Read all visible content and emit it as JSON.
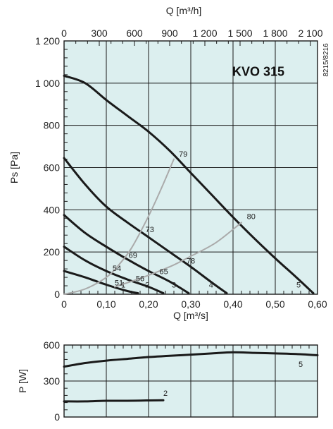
{
  "upper": {
    "model": "KVO 315",
    "side_code": "8215/8216",
    "top_axis_title": "Q [m³/h]",
    "top_ticks": [
      {
        "v": 0,
        "label": "0"
      },
      {
        "v": 300,
        "label": "300"
      },
      {
        "v": 600,
        "label": "600"
      },
      {
        "v": 900,
        "label": "900"
      },
      {
        "v": 1200,
        "label": "1 200"
      },
      {
        "v": 1500,
        "label": "1 500"
      },
      {
        "v": 1800,
        "label": "1 800"
      },
      {
        "v": 2100,
        "label": "2 100"
      }
    ],
    "x_axis_title": "Q [m³/s]",
    "x_ticks": [
      {
        "v": 0,
        "label": "0"
      },
      {
        "v": 0.1,
        "label": "0,10"
      },
      {
        "v": 0.2,
        "label": "0,20"
      },
      {
        "v": 0.3,
        "label": "0,30"
      },
      {
        "v": 0.4,
        "label": "0,40"
      },
      {
        "v": 0.5,
        "label": "0,50"
      },
      {
        "v": 0.6,
        "label": "0,60"
      }
    ],
    "y_axis_title": "Ps [Pa]",
    "y_ticks": [
      {
        "v": 0,
        "label": "0"
      },
      {
        "v": 200,
        "label": "200"
      },
      {
        "v": 400,
        "label": "400"
      },
      {
        "v": 600,
        "label": "600"
      },
      {
        "v": 800,
        "label": "800"
      },
      {
        "v": 1000,
        "label": "1 000"
      },
      {
        "v": 1200,
        "label": "1 200"
      }
    ]
  },
  "lower": {
    "y_axis_title": "P [W]",
    "y_ticks": [
      {
        "v": 0,
        "label": "0"
      },
      {
        "v": 300,
        "label": "300"
      },
      {
        "v": 600,
        "label": "600"
      }
    ]
  },
  "colors": {
    "plot_bg": "#dcefef",
    "grid": "#1a1a1a",
    "curve": "#1a1a1a",
    "efficiency": "#aaaaaa"
  },
  "chart_data": [
    {
      "type": "line",
      "title": "KVO 315",
      "xlabel": "Q [m³/s]",
      "ylabel": "Ps [Pa]",
      "secondary_xlabel": "Q [m³/h]",
      "xlim": [
        0,
        0.6
      ],
      "ylim": [
        0,
        1200
      ],
      "grid": true,
      "series": [
        {
          "name": "5",
          "label_at": [
            0.555,
            45
          ],
          "x": [
            0,
            0.05,
            0.1,
            0.15,
            0.2,
            0.25,
            0.3,
            0.35,
            0.4,
            0.45,
            0.5,
            0.55,
            0.59
          ],
          "y": [
            1035,
            1000,
            920,
            845,
            770,
            680,
            575,
            470,
            365,
            265,
            170,
            80,
            5
          ]
        },
        {
          "name": "4",
          "label_at": [
            0.348,
            45
          ],
          "x": [
            0,
            0.05,
            0.1,
            0.15,
            0.2,
            0.25,
            0.3,
            0.35,
            0.385
          ],
          "y": [
            645,
            520,
            415,
            340,
            270,
            200,
            130,
            55,
            5
          ]
        },
        {
          "name": "3",
          "label_at": [
            0.26,
            45
          ],
          "x": [
            0,
            0.05,
            0.1,
            0.15,
            0.2,
            0.25,
            0.295
          ],
          "y": [
            375,
            290,
            225,
            165,
            110,
            60,
            5
          ]
        },
        {
          "name": "2",
          "label_at": [
            0.197,
            45
          ],
          "x": [
            0,
            0.05,
            0.1,
            0.15,
            0.2,
            0.235
          ],
          "y": [
            225,
            160,
            110,
            70,
            35,
            5
          ]
        },
        {
          "name": "1",
          "label_at": [
            0.14,
            45
          ],
          "x": [
            0,
            0.05,
            0.1,
            0.15,
            0.175
          ],
          "y": [
            110,
            80,
            45,
            15,
            5
          ]
        },
        {
          "name": "",
          "style": "efficiency",
          "x": [
            0,
            0.05,
            0.1,
            0.13,
            0.16,
            0.2,
            0.23,
            0.26
          ],
          "y": [
            0,
            25,
            80,
            140,
            220,
            370,
            500,
            640
          ]
        },
        {
          "name": "",
          "style": "efficiency",
          "x": [
            0.12,
            0.18,
            0.25,
            0.3,
            0.36,
            0.42
          ],
          "y": [
            35,
            75,
            130,
            180,
            245,
            340
          ]
        }
      ],
      "point_labels": [
        {
          "text": "79",
          "x": 0.282,
          "y": 665
        },
        {
          "text": "80",
          "x": 0.443,
          "y": 370
        },
        {
          "text": "73",
          "x": 0.203,
          "y": 308
        },
        {
          "text": "78",
          "x": 0.3,
          "y": 158
        },
        {
          "text": "69",
          "x": 0.163,
          "y": 185
        },
        {
          "text": "65",
          "x": 0.236,
          "y": 108
        },
        {
          "text": "54",
          "x": 0.125,
          "y": 123
        },
        {
          "text": "56",
          "x": 0.18,
          "y": 76
        },
        {
          "text": "51",
          "x": 0.13,
          "y": 55
        }
      ]
    },
    {
      "type": "line",
      "ylabel": "P [W]",
      "xlim": [
        0,
        0.6
      ],
      "ylim": [
        0,
        600
      ],
      "grid": true,
      "series": [
        {
          "name": "5",
          "label_at": [
            0.56,
            440
          ],
          "x": [
            0,
            0.05,
            0.1,
            0.15,
            0.2,
            0.25,
            0.3,
            0.35,
            0.4,
            0.45,
            0.5,
            0.55,
            0.6
          ],
          "y": [
            420,
            450,
            470,
            485,
            500,
            510,
            520,
            530,
            540,
            535,
            530,
            525,
            515
          ]
        },
        {
          "name": "2",
          "label_at": [
            0.24,
            200
          ],
          "x": [
            0,
            0.05,
            0.1,
            0.15,
            0.2,
            0.235
          ],
          "y": [
            130,
            130,
            135,
            135,
            138,
            140
          ]
        }
      ]
    }
  ]
}
